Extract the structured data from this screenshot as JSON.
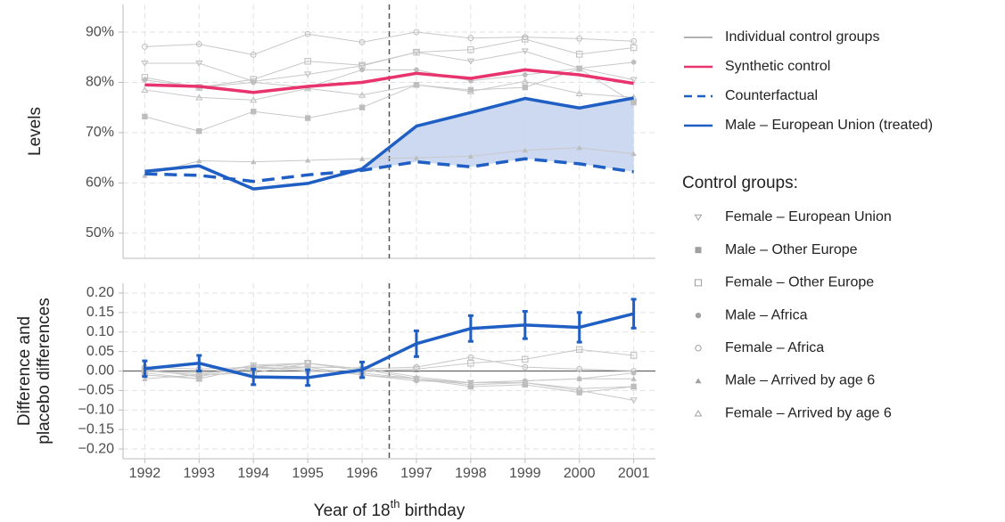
{
  "chart_data": [
    {
      "type": "line",
      "ylabel": "Levels",
      "x": [
        1992,
        1993,
        1994,
        1995,
        1996,
        1997,
        1998,
        1999,
        2000,
        2001
      ],
      "xlim": [
        1991.6,
        2001.4
      ],
      "ylim": [
        45,
        95.5
      ],
      "yticks": [
        {
          "value": 50,
          "label": "50%"
        },
        {
          "value": 60,
          "label": "60%"
        },
        {
          "value": 70,
          "label": "70%"
        },
        {
          "value": 80,
          "label": "80%"
        },
        {
          "value": 90,
          "label": "90%"
        }
      ],
      "grid": true,
      "treatment_x": 1996.5,
      "control_line_label": "Individual control groups",
      "control_color": "#c8c8c8",
      "marker_legend_title": "Control groups:",
      "fill_color": "#c6d5f0",
      "series": [
        {
          "name": "Female – European Union",
          "marker": "triangle-down",
          "control": true,
          "values": [
            83.8,
            83.8,
            80.2,
            81.6,
            83.3,
            86,
            84.2,
            86.2,
            82.8,
            80.5
          ]
        },
        {
          "name": "Male – Other Europe",
          "marker": "square-filled",
          "control": true,
          "values": [
            73.2,
            70.3,
            74.2,
            72.9,
            75,
            79.5,
            78.5,
            79,
            82.7,
            76
          ]
        },
        {
          "name": "Female – Other Europe",
          "marker": "square",
          "control": true,
          "values": [
            81,
            79,
            80.6,
            84.2,
            83.4,
            86,
            86.5,
            88.6,
            85.6,
            86.9
          ]
        },
        {
          "name": "Male – Africa",
          "marker": "circle-filled",
          "control": true,
          "values": [
            80.5,
            79,
            80,
            79,
            82.5,
            82.5,
            80.3,
            81.5,
            82.8,
            84
          ]
        },
        {
          "name": "Female – Africa",
          "marker": "circle",
          "control": true,
          "values": [
            87.1,
            87.6,
            85.5,
            89.6,
            88,
            90,
            88.8,
            89,
            88.7,
            88.2
          ]
        },
        {
          "name": "Male – Arrived by age 6",
          "marker": "triangle-filled",
          "control": true,
          "values": [
            61.5,
            64.4,
            64.2,
            64.5,
            64.8,
            65,
            65.3,
            66.5,
            67,
            65.8
          ]
        },
        {
          "name": "Female – Arrived by age 6",
          "marker": "triangle",
          "control": true,
          "values": [
            78.5,
            77,
            76.5,
            78.8,
            77.5,
            79.5,
            78.2,
            80.2,
            77.8,
            77
          ]
        },
        {
          "name": "Synthetic control",
          "color": "#e8336e",
          "values": [
            79.5,
            79.2,
            78,
            79.2,
            80,
            81.8,
            80.8,
            82.5,
            81.5,
            79.8
          ]
        },
        {
          "name": "Counterfactual",
          "color": "#1f5fc4",
          "dash": true,
          "values": [
            61.8,
            61.5,
            60.3,
            61.6,
            62.5,
            64.2,
            63.2,
            64.8,
            63.8,
            62.2
          ]
        },
        {
          "name": "Male – European Union (treated)",
          "color": "#1f5fc4",
          "treated": true,
          "values": [
            62.3,
            63.4,
            58.8,
            59.9,
            62.8,
            71.3,
            74,
            76.8,
            74.9,
            76.9
          ]
        }
      ]
    },
    {
      "type": "line",
      "ylabel": [
        "Difference and",
        "placebo differences"
      ],
      "xlabel": [
        "Year of 18",
        "th",
        " birthday"
      ],
      "x": [
        1992,
        1993,
        1994,
        1995,
        1996,
        1997,
        1998,
        1999,
        2000,
        2001
      ],
      "xlim": [
        1991.6,
        2001.4
      ],
      "ylim": [
        -0.225,
        0.225
      ],
      "xticks": [
        1992,
        1993,
        1994,
        1995,
        1996,
        1997,
        1998,
        1999,
        2000,
        2001
      ],
      "yticks": [
        {
          "value": -0.2,
          "label": "−0.20"
        },
        {
          "value": -0.15,
          "label": "−0.15"
        },
        {
          "value": -0.1,
          "label": "−0.10"
        },
        {
          "value": -0.05,
          "label": "−0.05"
        },
        {
          "value": 0,
          "label": "0.00"
        },
        {
          "value": 0.05,
          "label": "0.05"
        },
        {
          "value": 0.1,
          "label": "0.10"
        },
        {
          "value": 0.15,
          "label": "0.15"
        },
        {
          "value": 0.2,
          "label": "0.20"
        }
      ],
      "grid": true,
      "series": [
        {
          "marker": "triangle-down",
          "control": true,
          "values": [
            0.005,
            -0.015,
            0.015,
            0.02,
            0.005,
            -0.02,
            -0.03,
            -0.03,
            -0.05,
            -0.075
          ]
        },
        {
          "marker": "square-filled",
          "control": true,
          "values": [
            -0.01,
            -0.02,
            0.01,
            0,
            -0.005,
            -0.02,
            -0.04,
            -0.035,
            -0.055,
            -0.04
          ]
        },
        {
          "marker": "square",
          "control": true,
          "values": [
            0,
            -0.01,
            -0.005,
            0.02,
            0,
            0.005,
            0.02,
            0.03,
            0.055,
            0.04
          ]
        },
        {
          "marker": "circle-filled",
          "control": true,
          "values": [
            0,
            -0.005,
            0.005,
            0.01,
            -0.01,
            -0.025,
            -0.03,
            -0.025,
            -0.02,
            -0.005
          ]
        },
        {
          "marker": "circle",
          "control": true,
          "values": [
            0.01,
            0.005,
            0.01,
            0.02,
            0.005,
            0.01,
            0.035,
            0.01,
            0.005,
            0
          ]
        },
        {
          "marker": "triangle-filled",
          "control": true,
          "values": [
            -0.02,
            -0.01,
            0.015,
            0.01,
            0.008,
            -0.015,
            -0.03,
            -0.025,
            -0.02,
            -0.02
          ]
        },
        {
          "marker": "triangle",
          "control": true,
          "values": [
            -0.005,
            -0.02,
            0.01,
            0.005,
            -0.01,
            -0.02,
            -0.035,
            -0.03,
            -0.045,
            -0.04
          ]
        },
        {
          "color": "#1f5fc4",
          "treated": true,
          "values": [
            0.006,
            0.02,
            -0.015,
            -0.017,
            0.003,
            0.07,
            0.109,
            0.118,
            0.112,
            0.147
          ],
          "errors": [
            0.02,
            0.02,
            0.02,
            0.02,
            0.02,
            0.033,
            0.033,
            0.035,
            0.038,
            0.037
          ]
        }
      ]
    }
  ]
}
